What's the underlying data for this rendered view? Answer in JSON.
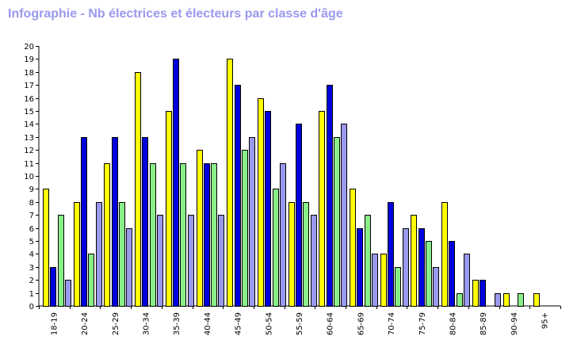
{
  "chart_data": {
    "type": "bar",
    "title": "Infographie - Nb électrices et électeurs par classe d'âge",
    "xlabel": "",
    "ylabel": "",
    "ylim": [
      0,
      20
    ],
    "y_ticks": [
      0,
      1,
      2,
      3,
      4,
      5,
      6,
      7,
      8,
      9,
      10,
      11,
      12,
      13,
      14,
      15,
      16,
      17,
      18,
      19,
      20
    ],
    "grid": false,
    "legend": "none",
    "categories": [
      "18-19",
      "20-24",
      "25-29",
      "30-34",
      "35-39",
      "40-44",
      "45-49",
      "50-54",
      "55-59",
      "60-64",
      "65-69",
      "70-74",
      "75-79",
      "80-84",
      "85-89",
      "90-94",
      "95+"
    ],
    "series": [
      {
        "color": "#ffff00",
        "values": [
          9,
          8,
          11,
          18,
          15,
          12,
          19,
          16,
          8,
          15,
          9,
          4,
          7,
          8,
          2,
          1,
          1
        ]
      },
      {
        "color": "#0000dd",
        "values": [
          3,
          13,
          13,
          13,
          19,
          11,
          17,
          15,
          14,
          17,
          6,
          8,
          6,
          5,
          2,
          0,
          0
        ]
      },
      {
        "color": "#88ee88",
        "values": [
          7,
          4,
          8,
          11,
          11,
          11,
          12,
          9,
          8,
          13,
          7,
          3,
          5,
          1,
          0,
          1,
          0
        ]
      },
      {
        "color": "#9999ee",
        "values": [
          2,
          8,
          6,
          7,
          7,
          7,
          13,
          11,
          7,
          14,
          4,
          6,
          3,
          4,
          1,
          0,
          0
        ]
      }
    ]
  }
}
